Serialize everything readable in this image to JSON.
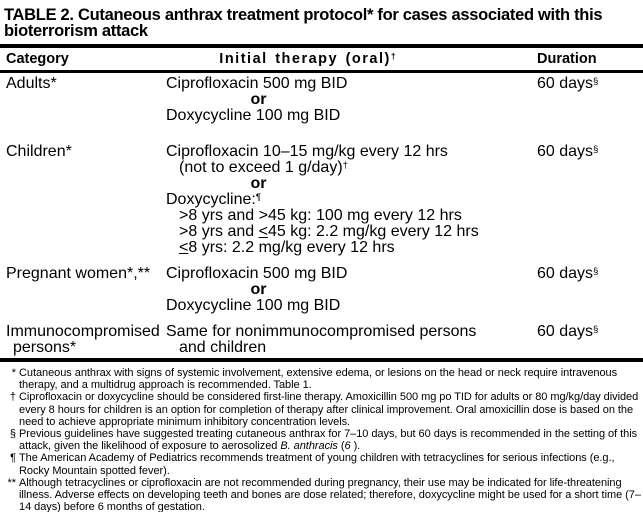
{
  "title": "TABLE 2. Cutaneous anthrax treatment protocol* for cases associated with this bioterrorism attack",
  "table": {
    "headers": {
      "category": "Category",
      "therapy": "Initial therapy (oral)",
      "therapy_marker": "†",
      "duration": "Duration"
    },
    "rows": [
      {
        "category": "Adults*",
        "drug1": "Ciprofloxacin 500 mg BID",
        "or": "or",
        "drug2": "Doxycycline 100 mg BID",
        "duration": "60 days",
        "duration_marker": "§"
      },
      {
        "category": "Children*",
        "drug1": "Ciprofloxacin 10–15 mg/kg every 12 hrs",
        "drug1_note": "(not to exceed 1 g/day)",
        "drug1_note_marker": "†",
        "or": "or",
        "drug2": "Doxycycline:",
        "drug2_marker": "¶",
        "dose1": ">8 yrs and >45 kg: 100 mg every 12 hrs",
        "dose2_pre": ">8 yrs and ",
        "dose2_le": "<",
        "dose2_post": "45 kg: 2.2 mg/kg every 12 hrs",
        "dose3_le": "<",
        "dose3_post": "8 yrs: 2.2 mg/kg every 12 hrs",
        "duration": "60 days",
        "duration_marker": "§"
      },
      {
        "category": "Pregnant women*,**",
        "drug1": "Ciprofloxacin 500 mg BID",
        "or": "or",
        "drug2": "Doxycycline 100 mg BID",
        "duration": "60 days",
        "duration_marker": "§"
      },
      {
        "category": "Immunocompromised",
        "category_line2": "persons*",
        "line1": "Same for nonimmunocompromised persons",
        "line2": "and children",
        "duration": "60 days",
        "duration_marker": "§"
      }
    ]
  },
  "footnotes": [
    {
      "marker": "*",
      "text": "Cutaneous anthrax with signs of systemic involvement, extensive edema, or lesions on the head or neck require intravenous therapy, and a multidrug approach is recommended. Table 1."
    },
    {
      "marker": "†",
      "text": "Ciprofloxacin or doxycycline should be considered first-line therapy. Amoxicillin 500 mg po TID for adults or 80 mg/kg/day divided every 8 hours for children is an option for completion of therapy after clinical improvement. Oral amoxicillin dose is based on the need to achieve appropriate minimum inhibitory concentration levels."
    },
    {
      "marker": "§",
      "pre": "Previous guidelines have suggested treating cutaneous anthrax for 7–10 days, but 60 days is recommended in the setting of this attack, given the likelihood of exposure to aerosolized ",
      "italic": "B. anthracis",
      "mid": " (",
      "num": "6",
      "post": " )."
    },
    {
      "marker": "¶",
      "text": "The American Academy of Pediatrics recommends treatment of young children with tetracyclines for serious infections (e.g., Rocky Mountain spotted fever)."
    },
    {
      "marker": "**",
      "text": "Although tetracyclines or ciprofloxacin are not recommended during pregnancy, their use may be indicated for life-threatening illness.  Adverse effects on developing teeth and bones are dose related; therefore, doxycycline might be used for a short time (7–14 days) before 6 months of gestation."
    }
  ]
}
